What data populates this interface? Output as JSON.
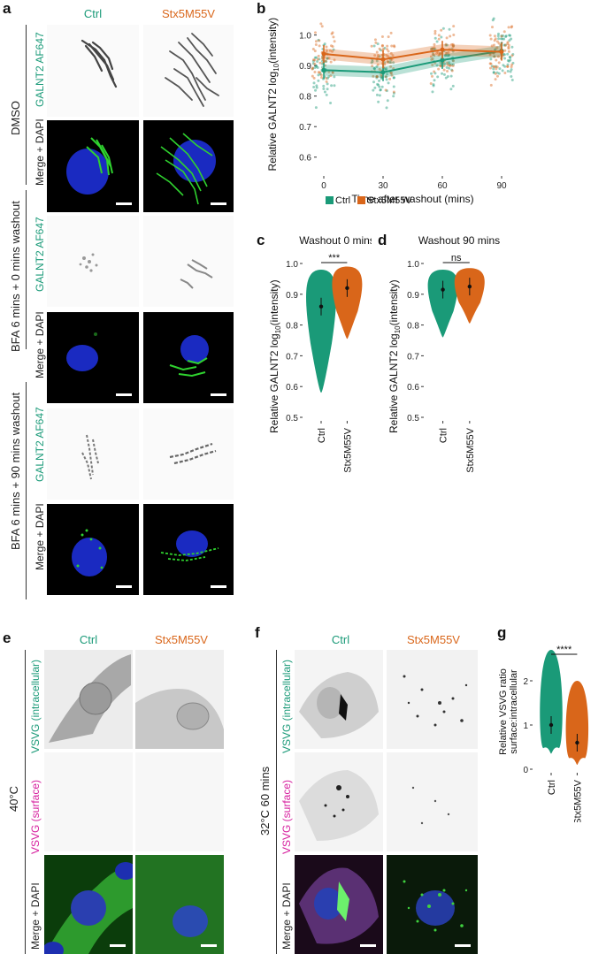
{
  "panels": {
    "a": "a",
    "b": "b",
    "c": "c",
    "d": "d",
    "e": "e",
    "f": "f",
    "g": "g"
  },
  "panel_a": {
    "col_headers": [
      "Ctrl",
      "Stx5M55V"
    ],
    "row_label_galnt2": "GALNT2 AF647",
    "row_label_merge": "Merge + DAPI",
    "conditions": [
      "DMSO",
      "BFA 6 mins + 0 mins washout",
      "BFA 6 mins + 90 mins washout"
    ]
  },
  "panel_e": {
    "col_headers": [
      "Ctrl",
      "Stx5M55V"
    ],
    "row_label_intracellular": "VSVG (intracellular)",
    "row_label_surface": "VSVG (surface)",
    "row_label_merge": "Merge + DAPI",
    "condition": "40°C"
  },
  "panel_f": {
    "col_headers": [
      "Ctrl",
      "Stx5M55V"
    ],
    "row_label_intracellular": "VSVG (intracellular)",
    "row_label_surface": "VSVG (surface)",
    "row_label_merge": "Merge + DAPI",
    "condition": "32°C 60 mins"
  },
  "colors": {
    "ctrl": "#1a9a78",
    "mutant": "#d9661a",
    "magenta": "#d61e9e"
  },
  "chart_data": [
    {
      "panel": "b",
      "type": "line",
      "xlabel": "Time after washout (mins)",
      "ylabel": "Relative GALNT2 log10(intensity)",
      "ylabel_main": "Relative GALNT2 log",
      "ylabel_sub": "10",
      "ylabel_tail": "(intensity)",
      "x": [
        0,
        30,
        60,
        90
      ],
      "xticks": [
        "0",
        "30",
        "60",
        "90"
      ],
      "ylim": [
        0.55,
        1.08
      ],
      "yticks": [
        "0.6",
        "0.7",
        "0.8",
        "0.9",
        "1.0"
      ],
      "series": [
        {
          "name": "Ctrl",
          "values": [
            0.885,
            0.878,
            0.918,
            0.948
          ]
        },
        {
          "name": "Stx5M55V",
          "values": [
            0.938,
            0.92,
            0.952,
            0.945
          ]
        }
      ],
      "legend": [
        "Ctrl",
        "Stx5M55V"
      ],
      "legend_position": "bottom"
    },
    {
      "panel": "c",
      "type": "violin",
      "title": "Washout 0 mins",
      "categories": [
        "Ctrl",
        "Stx5M55V"
      ],
      "medians": [
        0.86,
        0.92
      ],
      "ranges": [
        [
          0.58,
          0.98
        ],
        [
          0.755,
          0.99
        ]
      ],
      "significance": "***",
      "ylim": [
        0.5,
        1.0
      ],
      "yticks": [
        "0.5",
        "0.6",
        "0.7",
        "0.8",
        "0.9",
        "1.0"
      ],
      "ylabel_main": "Relative GALNT2 log",
      "ylabel_sub": "10",
      "ylabel_tail": "(intensity)"
    },
    {
      "panel": "d",
      "type": "violin",
      "title": "Washout 90 mins",
      "categories": [
        "Ctrl",
        "Stx5M55V"
      ],
      "medians": [
        0.915,
        0.925
      ],
      "ranges": [
        [
          0.76,
          0.98
        ],
        [
          0.805,
          0.985
        ]
      ],
      "significance": "ns",
      "ylim": [
        0.5,
        1.0
      ],
      "yticks": [
        "0.5",
        "0.6",
        "0.7",
        "0.8",
        "0.9",
        "1.0"
      ],
      "ylabel_main": "Relative GALNT2 log",
      "ylabel_sub": "10",
      "ylabel_tail": "(intensity)"
    },
    {
      "panel": "g",
      "type": "violin",
      "categories": [
        "Ctrl",
        "Stx5M55V"
      ],
      "medians": [
        1.0,
        0.6
      ],
      "ranges": [
        [
          0.35,
          2.7
        ],
        [
          0.1,
          2.0
        ]
      ],
      "significance": "****",
      "ylim": [
        0,
        2.6
      ],
      "yticks": [
        "0",
        "1",
        "2"
      ],
      "ylabel": "Relative VSVG ratio",
      "ylabel2": "surface:intracellular"
    }
  ]
}
